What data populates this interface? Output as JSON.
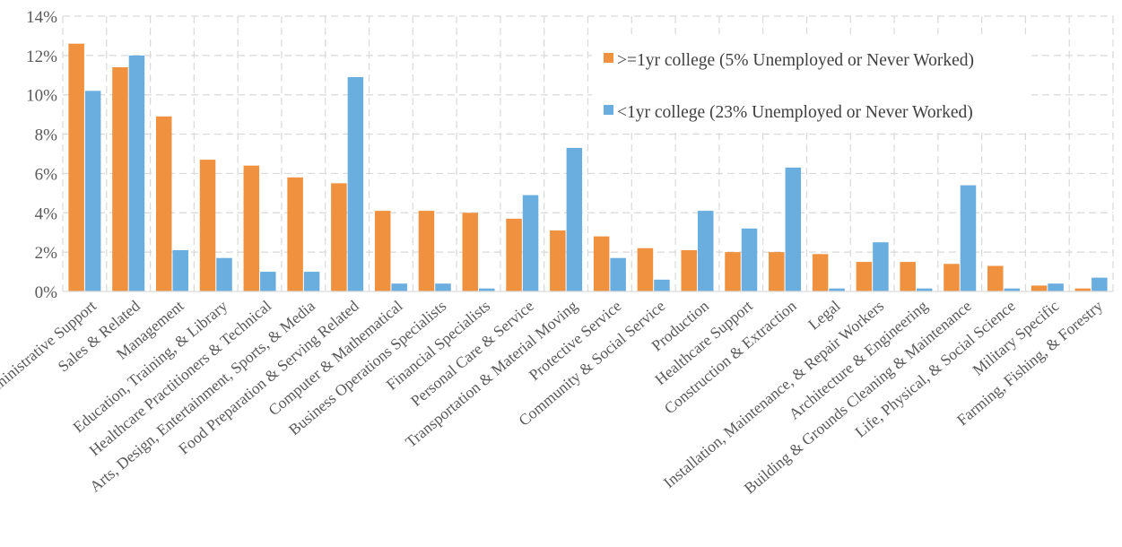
{
  "chart_data": {
    "type": "bar",
    "ylim": [
      0,
      14
    ],
    "yticks": [
      0,
      2,
      4,
      6,
      8,
      10,
      12,
      14
    ],
    "ytick_format": "percent",
    "grid": "dashed",
    "legend_position": "top-right",
    "categories": [
      "Office & Administrative Support",
      "Sales & Related",
      "Management",
      "Education, Training, & Library",
      "Healthcare Practitioners & Technical",
      "Arts, Design, Entertainment, Sports, & Media",
      "Food Preparation & Serving Related",
      "Computer & Mathematical",
      "Business Operations Specialists",
      "Financial Specialists",
      "Personal Care & Service",
      "Transportation & Material Moving",
      "Protective Service",
      "Community & Social Service",
      "Production",
      "Healthcare Support",
      "Construction & Extraction",
      "Legal",
      "Installation, Maintenance, & Repair Workers",
      "Architecture & Engineering",
      "Building & Grounds Cleaning & Maintenance",
      "Life, Physical, & Social Science",
      "Military Specific",
      "Farming, Fishing, & Forestry"
    ],
    "series": [
      {
        "name": ">=1yr college (5% Unemployed or Never Worked)",
        "color": "#f0913f",
        "values": [
          12.6,
          11.4,
          8.9,
          6.7,
          6.4,
          5.8,
          5.5,
          4.1,
          4.1,
          4.0,
          3.7,
          3.1,
          2.8,
          2.2,
          2.1,
          2.0,
          2.0,
          1.9,
          1.5,
          1.5,
          1.4,
          1.3,
          0.3,
          0.15
        ]
      },
      {
        "name": "<1yr college (23% Unemployed or Never Worked)",
        "color": "#6aaedf",
        "values": [
          10.2,
          12.0,
          2.1,
          1.7,
          1.0,
          1.0,
          10.9,
          0.4,
          0.4,
          0.15,
          4.9,
          7.3,
          1.7,
          0.6,
          4.1,
          3.2,
          6.3,
          0.15,
          2.5,
          0.15,
          5.4,
          0.15,
          0.4,
          0.7
        ]
      }
    ]
  }
}
